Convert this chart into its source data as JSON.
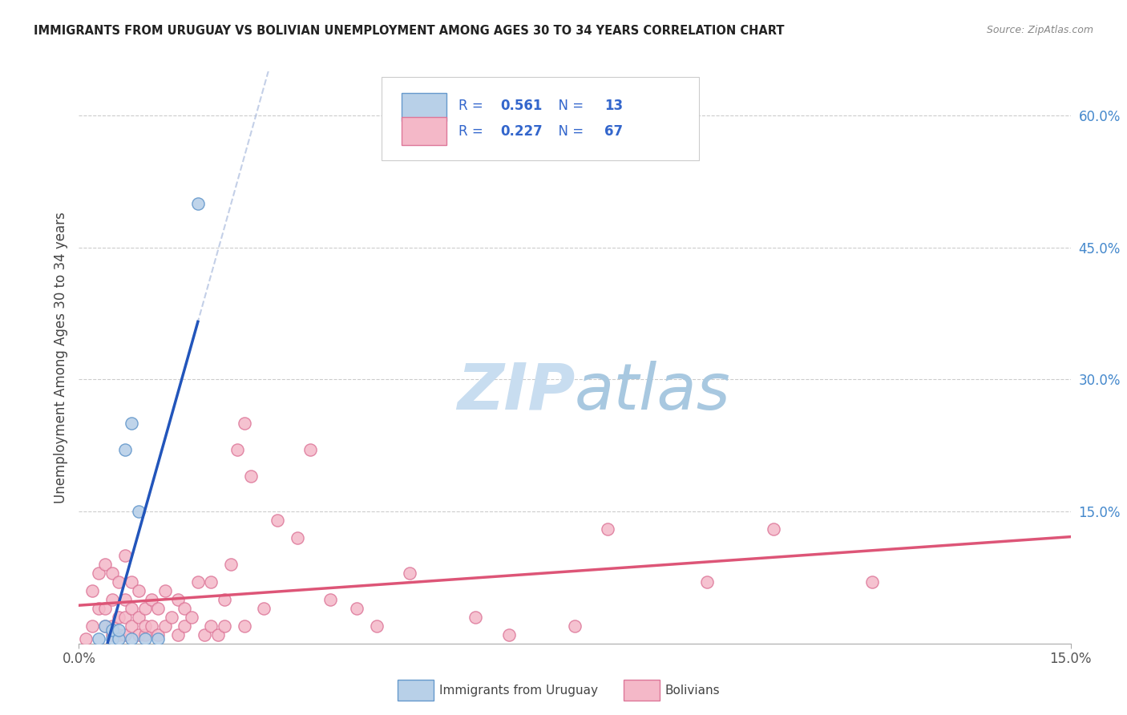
{
  "title": "IMMIGRANTS FROM URUGUAY VS BOLIVIAN UNEMPLOYMENT AMONG AGES 30 TO 34 YEARS CORRELATION CHART",
  "source": "Source: ZipAtlas.com",
  "ylabel": "Unemployment Among Ages 30 to 34 years",
  "xlim": [
    0.0,
    0.15
  ],
  "ylim": [
    0.0,
    0.65
  ],
  "gridline_y": [
    0.15,
    0.3,
    0.45,
    0.6
  ],
  "r_uruguay": "0.561",
  "n_uruguay": "13",
  "r_bolivians": "0.227",
  "n_bolivians": "67",
  "uruguay_fill": "#b8d0e8",
  "uruguay_edge": "#6699cc",
  "bolivian_fill": "#f4b8c8",
  "bolivian_edge": "#dd7799",
  "uruguay_line_color": "#2255bb",
  "bolivian_line_color": "#dd5577",
  "legend_text_color": "#3366cc",
  "watermark_zip": "#c8ddf0",
  "watermark_atlas": "#a8c8e0",
  "uruguay_x": [
    0.003,
    0.004,
    0.005,
    0.005,
    0.006,
    0.006,
    0.007,
    0.008,
    0.008,
    0.009,
    0.01,
    0.012,
    0.018
  ],
  "uruguay_y": [
    0.005,
    0.02,
    0.005,
    0.015,
    0.005,
    0.015,
    0.22,
    0.005,
    0.25,
    0.15,
    0.005,
    0.005,
    0.5
  ],
  "bolivian_x": [
    0.001,
    0.002,
    0.002,
    0.003,
    0.003,
    0.004,
    0.004,
    0.004,
    0.005,
    0.005,
    0.005,
    0.005,
    0.006,
    0.006,
    0.006,
    0.007,
    0.007,
    0.007,
    0.007,
    0.008,
    0.008,
    0.008,
    0.009,
    0.009,
    0.009,
    0.01,
    0.01,
    0.01,
    0.011,
    0.011,
    0.012,
    0.012,
    0.013,
    0.013,
    0.014,
    0.015,
    0.015,
    0.016,
    0.016,
    0.017,
    0.018,
    0.019,
    0.02,
    0.02,
    0.021,
    0.022,
    0.022,
    0.023,
    0.024,
    0.025,
    0.025,
    0.026,
    0.028,
    0.03,
    0.033,
    0.035,
    0.038,
    0.042,
    0.045,
    0.05,
    0.06,
    0.065,
    0.075,
    0.08,
    0.095,
    0.105,
    0.12
  ],
  "bolivian_y": [
    0.005,
    0.02,
    0.06,
    0.04,
    0.08,
    0.02,
    0.04,
    0.09,
    0.01,
    0.02,
    0.05,
    0.08,
    0.01,
    0.03,
    0.07,
    0.01,
    0.03,
    0.05,
    0.1,
    0.02,
    0.04,
    0.07,
    0.01,
    0.03,
    0.06,
    0.01,
    0.02,
    0.04,
    0.02,
    0.05,
    0.01,
    0.04,
    0.02,
    0.06,
    0.03,
    0.01,
    0.05,
    0.02,
    0.04,
    0.03,
    0.07,
    0.01,
    0.02,
    0.07,
    0.01,
    0.02,
    0.05,
    0.09,
    0.22,
    0.25,
    0.02,
    0.19,
    0.04,
    0.14,
    0.12,
    0.22,
    0.05,
    0.04,
    0.02,
    0.08,
    0.03,
    0.01,
    0.02,
    0.13,
    0.07,
    0.13,
    0.07
  ]
}
